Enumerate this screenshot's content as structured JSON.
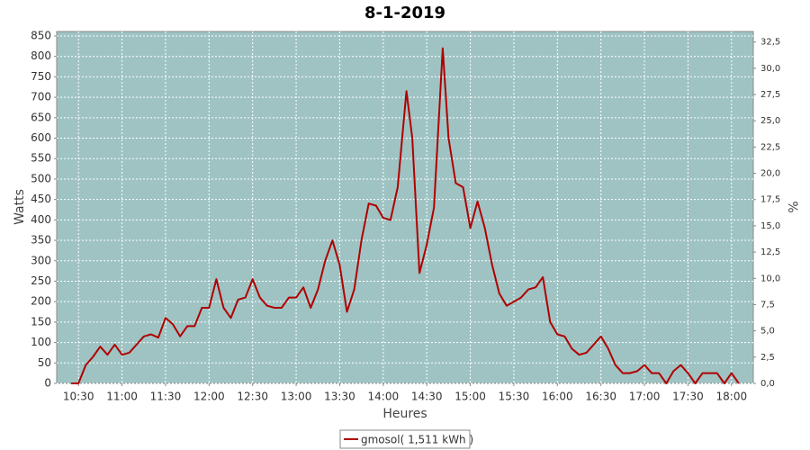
{
  "chart_data": {
    "type": "line",
    "title": "8-1-2019",
    "x_label": "Heures",
    "y_label": "Watts",
    "y2_label": "%",
    "x": [
      "10:25",
      "10:30",
      "10:35",
      "10:40",
      "10:45",
      "10:50",
      "10:55",
      "11:00",
      "11:05",
      "11:10",
      "11:15",
      "11:20",
      "11:25",
      "11:30",
      "11:35",
      "11:40",
      "11:45",
      "11:50",
      "11:55",
      "12:00",
      "12:05",
      "12:10",
      "12:15",
      "12:20",
      "12:25",
      "12:30",
      "12:35",
      "12:40",
      "12:45",
      "12:50",
      "12:55",
      "13:00",
      "13:05",
      "13:10",
      "13:15",
      "13:20",
      "13:25",
      "13:30",
      "13:35",
      "13:40",
      "13:45",
      "13:50",
      "13:55",
      "14:00",
      "14:05",
      "14:10",
      "14:16",
      "14:20",
      "14:25",
      "14:30",
      "14:35",
      "14:41",
      "14:45",
      "14:50",
      "14:55",
      "15:00",
      "15:05",
      "15:10",
      "15:15",
      "15:20",
      "15:25",
      "15:30",
      "15:35",
      "15:40",
      "15:45",
      "15:50",
      "15:55",
      "16:00",
      "16:05",
      "16:10",
      "16:15",
      "16:20",
      "16:25",
      "16:30",
      "16:35",
      "16:40",
      "16:45",
      "16:50",
      "16:55",
      "17:00",
      "17:05",
      "17:10",
      "17:15",
      "17:20",
      "17:25",
      "17:30",
      "17:35",
      "17:40",
      "17:45",
      "17:50",
      "17:55",
      "18:00",
      "18:05"
    ],
    "series": [
      {
        "name": "gmosol( 1,511 kWh )",
        "color": "#b00000",
        "values": [
          0,
          0,
          45,
          65,
          90,
          70,
          95,
          70,
          75,
          95,
          115,
          120,
          112,
          160,
          145,
          115,
          140,
          140,
          185,
          185,
          255,
          185,
          160,
          205,
          210,
          255,
          210,
          190,
          185,
          185,
          210,
          210,
          235,
          185,
          230,
          300,
          350,
          290,
          175,
          230,
          350,
          440,
          435,
          405,
          400,
          480,
          715,
          600,
          270,
          340,
          430,
          820,
          600,
          490,
          480,
          380,
          445,
          380,
          290,
          220,
          190,
          200,
          210,
          230,
          235,
          260,
          150,
          120,
          115,
          85,
          70,
          75,
          95,
          115,
          85,
          45,
          25,
          25,
          30,
          45,
          25,
          25,
          0,
          30,
          45,
          25,
          0,
          25,
          25,
          25,
          0,
          25,
          0
        ]
      }
    ],
    "xlim": [
      "10:15",
      "18:15"
    ],
    "xticks": [
      "10:30",
      "11:00",
      "11:30",
      "12:00",
      "12:30",
      "13:00",
      "13:30",
      "14:00",
      "14:30",
      "15:00",
      "15:30",
      "16:00",
      "16:30",
      "17:00",
      "17:30",
      "18:00"
    ],
    "ylim": [
      0,
      861
    ],
    "yticks": [
      0,
      50,
      100,
      150,
      200,
      250,
      300,
      350,
      400,
      450,
      500,
      550,
      600,
      650,
      700,
      750,
      800,
      850
    ],
    "y2lim": [
      0,
      33.5
    ],
    "y2ticks": [
      {
        "value": 0,
        "label": "0,0"
      },
      {
        "value": 2.5,
        "label": "2,5"
      },
      {
        "value": 5,
        "label": "5,0"
      },
      {
        "value": 7.5,
        "label": "7,5"
      },
      {
        "value": 10,
        "label": "10,0"
      },
      {
        "value": 12.5,
        "label": "12,5"
      },
      {
        "value": 15,
        "label": "15,0"
      },
      {
        "value": 17.5,
        "label": "17,5"
      },
      {
        "value": 20,
        "label": "20,0"
      },
      {
        "value": 22.5,
        "label": "22,5"
      },
      {
        "value": 25,
        "label": "25,0"
      },
      {
        "value": 27.5,
        "label": "27,5"
      },
      {
        "value": 30,
        "label": "30,0"
      },
      {
        "value": 32.5,
        "label": "32,5"
      }
    ],
    "grid": true,
    "plot_background": "#9fc3c3"
  }
}
